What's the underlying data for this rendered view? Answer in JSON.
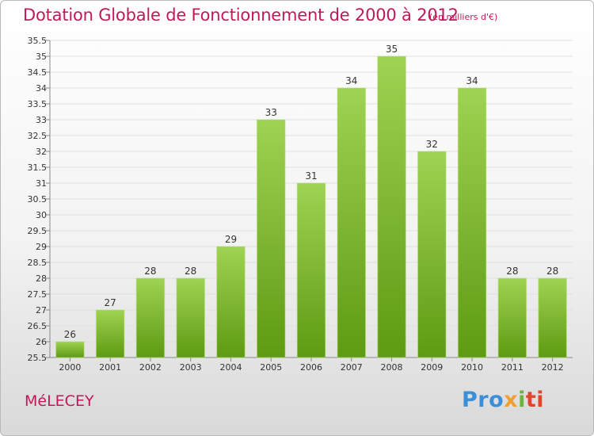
{
  "title": "Dotation Globale de Fonctionnement de 2000 à 2012",
  "subtitle": "(en milliers d'€)",
  "commune": "MéLECEY",
  "logo": {
    "parts": [
      "Pro",
      "x",
      "i",
      "ti"
    ]
  },
  "colors": {
    "title": "#c2185b",
    "bar_light": "#9fd353",
    "bar_dark": "#5e9a12",
    "grid": "#e0e0e0"
  },
  "chart_data": {
    "type": "bar",
    "title": "Dotation Globale de Fonctionnement de 2000 à 2012",
    "subtitle": "(en milliers d'€)",
    "categories": [
      "2000",
      "2001",
      "2002",
      "2003",
      "2004",
      "2005",
      "2006",
      "2007",
      "2008",
      "2009",
      "2010",
      "2011",
      "2012"
    ],
    "values": [
      26,
      27,
      28,
      28,
      29,
      33,
      31,
      34,
      35,
      32,
      34,
      28,
      28
    ],
    "ylim": [
      25.5,
      35.5
    ],
    "yticks": [
      25.5,
      26,
      26.5,
      27,
      27.5,
      28,
      28.5,
      29,
      29.5,
      30,
      30.5,
      31,
      31.5,
      32,
      32.5,
      33,
      33.5,
      34,
      34.5,
      35,
      35.5
    ],
    "ytick_labels": [
      "25.5",
      "26",
      "26.5",
      "27",
      "27.5",
      "28",
      "28.5",
      "29",
      "29.5",
      "30",
      "30.5",
      "31",
      "31.5",
      "32",
      "32.5",
      "33",
      "33.5",
      "34",
      "34.5",
      "35",
      "35.5"
    ],
    "grid": true,
    "data_labels": true,
    "xlabel": "",
    "ylabel": ""
  }
}
